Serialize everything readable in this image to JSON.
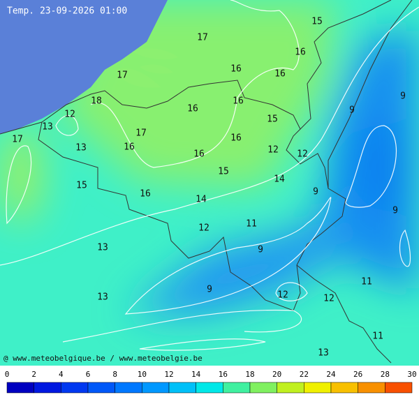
{
  "title": "Temp. 23-09-2026 01:00",
  "credit": "@ www.meteobelgique.be / www.meteobelgie.be",
  "contour_labels": [
    15,
    17,
    16,
    16,
    16,
    17,
    9,
    18,
    16,
    16,
    9,
    12,
    15,
    13,
    17,
    16,
    17,
    13,
    16,
    12,
    12,
    16,
    15,
    14,
    15,
    16,
    9,
    14,
    9,
    12,
    11,
    13,
    9,
    11,
    9,
    12,
    12,
    13,
    11,
    13
  ],
  "colorbar": {
    "ticks": [
      0,
      2,
      4,
      6,
      8,
      10,
      12,
      14,
      16,
      18,
      20,
      22,
      24,
      26,
      28,
      30
    ],
    "colors": [
      "#0000c0",
      "#0018e0",
      "#0038f0",
      "#0058f8",
      "#0078ff",
      "#0098ff",
      "#00c0f8",
      "#00e8e8",
      "#40f0a0",
      "#80f060",
      "#c0f020",
      "#f0f000",
      "#f8c000",
      "#f89000",
      "#f85000"
    ]
  }
}
